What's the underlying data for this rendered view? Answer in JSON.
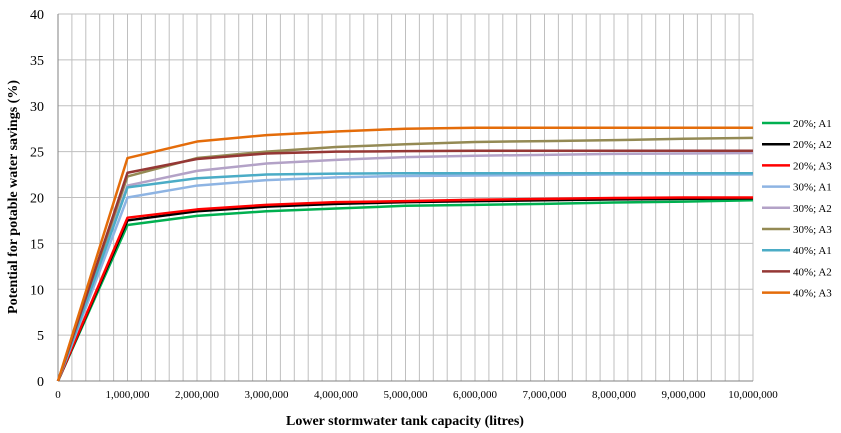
{
  "chart_data": {
    "type": "line",
    "title": "",
    "xlabel": "Lower stormwater tank capacity (litres)",
    "ylabel": "Potential for potable water savings (%)",
    "xlim": [
      0,
      10000000
    ],
    "ylim": [
      0,
      40
    ],
    "x_ticks": [
      0,
      1000000,
      2000000,
      3000000,
      4000000,
      5000000,
      6000000,
      7000000,
      8000000,
      9000000,
      10000000
    ],
    "x_tick_labels": [
      "0",
      "1,000,000",
      "2,000,000",
      "3,000,000",
      "4,000,000",
      "5,000,000",
      "6,000,000",
      "7,000,000",
      "8,000,000",
      "9,000,000",
      "10,000,000"
    ],
    "y_ticks": [
      0,
      5,
      10,
      15,
      20,
      25,
      30,
      35,
      40
    ],
    "y_tick_labels": [
      "0",
      "5",
      "10",
      "15",
      "20",
      "25",
      "30",
      "35",
      "40"
    ],
    "grid": "vertical and horizontal",
    "legend_position": "right",
    "x": [
      0,
      1000000,
      2000000,
      3000000,
      4000000,
      5000000,
      6000000,
      7000000,
      8000000,
      9000000,
      10000000
    ],
    "series": [
      {
        "name": "20%; A1",
        "color": "#00b050",
        "values": [
          0,
          17.0,
          18.0,
          18.5,
          18.8,
          19.1,
          19.2,
          19.3,
          19.45,
          19.55,
          19.7
        ]
      },
      {
        "name": "20%; A2",
        "color": "#000000",
        "values": [
          0,
          17.5,
          18.5,
          19.0,
          19.3,
          19.5,
          19.6,
          19.7,
          19.8,
          19.85,
          19.9
        ]
      },
      {
        "name": "20%; A3",
        "color": "#ff0000",
        "values": [
          0,
          17.8,
          18.7,
          19.2,
          19.5,
          19.6,
          19.75,
          19.85,
          19.95,
          20.0,
          20.0
        ]
      },
      {
        "name": "30%; A1",
        "color": "#8eb4e3",
        "values": [
          0,
          20.0,
          21.3,
          21.9,
          22.2,
          22.35,
          22.4,
          22.45,
          22.5,
          22.5,
          22.5
        ]
      },
      {
        "name": "30%; A2",
        "color": "#b3a2c7",
        "values": [
          0,
          21.3,
          22.9,
          23.7,
          24.1,
          24.4,
          24.55,
          24.65,
          24.75,
          24.8,
          24.85
        ]
      },
      {
        "name": "30%; A3",
        "color": "#948a54",
        "values": [
          0,
          22.3,
          24.3,
          25.0,
          25.5,
          25.8,
          26.05,
          26.15,
          26.25,
          26.4,
          26.5
        ]
      },
      {
        "name": "40%; A1",
        "color": "#4bacc6",
        "values": [
          0,
          21.1,
          22.1,
          22.5,
          22.6,
          22.65,
          22.65,
          22.65,
          22.65,
          22.65,
          22.65
        ]
      },
      {
        "name": "40%; A2",
        "color": "#953735",
        "values": [
          0,
          22.7,
          24.2,
          24.8,
          25.0,
          25.05,
          25.1,
          25.1,
          25.1,
          25.1,
          25.1
        ]
      },
      {
        "name": "40%; A3",
        "color": "#e46c0a",
        "values": [
          0,
          24.3,
          26.1,
          26.8,
          27.2,
          27.5,
          27.6,
          27.6,
          27.6,
          27.6,
          27.6
        ]
      }
    ]
  }
}
